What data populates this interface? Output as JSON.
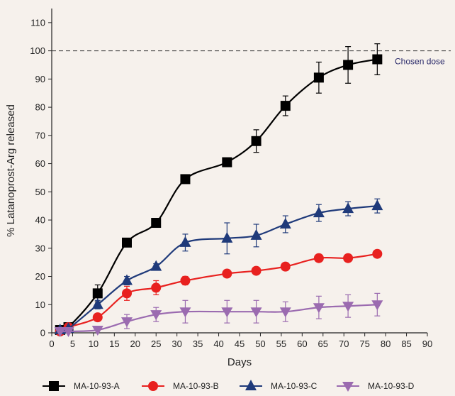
{
  "chart_data": {
    "type": "scatter",
    "title": "",
    "xlabel": "Days",
    "ylabel": "% Latanoprost-Arg released",
    "xlim": [
      0,
      90
    ],
    "ylim": [
      0,
      115
    ],
    "xticks": [
      "0",
      "5",
      "10",
      "15",
      "20",
      "25",
      "30",
      "35",
      "40",
      "45",
      "50",
      "55",
      "60",
      "65",
      "70",
      "75",
      "80",
      "85",
      "90"
    ],
    "yticks": [
      "0",
      "10",
      "20",
      "30",
      "40",
      "50",
      "60",
      "70",
      "80",
      "90",
      "100",
      "110"
    ],
    "grid": false,
    "legend_position": "bottom",
    "reference_line": {
      "y": 100,
      "style": "dashed",
      "label": "Chosen dose"
    },
    "series": [
      {
        "name": "MA-10-93-A",
        "color": "#000000",
        "marker": "square",
        "x": [
          2,
          4,
          11,
          18,
          25,
          32,
          42,
          49,
          56,
          64,
          71,
          78
        ],
        "y": [
          1,
          2,
          14,
          32,
          39,
          54.5,
          60.5,
          68,
          80.5,
          90.5,
          95,
          97
        ],
        "err": [
          0.5,
          0.5,
          3,
          1,
          1,
          1,
          1,
          4,
          3.5,
          5.5,
          6.5,
          5.5
        ]
      },
      {
        "name": "MA-10-93-B",
        "color": "#e8211f",
        "marker": "circle",
        "x": [
          2,
          4,
          11,
          18,
          25,
          32,
          42,
          49,
          56,
          64,
          71,
          78
        ],
        "y": [
          0.5,
          2,
          5.5,
          14,
          16,
          18.5,
          21,
          22,
          23.5,
          26.5,
          26.5,
          28
        ],
        "err": [
          0.5,
          0.5,
          1,
          2.5,
          2.5,
          1.5,
          1,
          1,
          1,
          1,
          1,
          1
        ]
      },
      {
        "name": "MA-10-93-C",
        "color": "#1f3a7a",
        "marker": "triangle-up",
        "x": [
          2,
          4,
          11,
          18,
          25,
          32,
          42,
          49,
          56,
          64,
          71,
          78
        ],
        "y": [
          1,
          1.5,
          10,
          18.5,
          23.5,
          32,
          33.5,
          34.5,
          38.5,
          42.5,
          44,
          45
        ],
        "err": [
          0.5,
          0.5,
          1.5,
          1.5,
          1,
          3,
          5.5,
          4,
          3,
          3,
          2.5,
          2.5
        ]
      },
      {
        "name": "MA-10-93-D",
        "color": "#9b6bb0",
        "marker": "triangle-down",
        "x": [
          2,
          4,
          11,
          18,
          25,
          32,
          42,
          49,
          56,
          64,
          71,
          78
        ],
        "y": [
          0.5,
          0.5,
          1,
          4,
          6.5,
          7.5,
          7.5,
          7.5,
          7.5,
          9,
          9.5,
          10
        ],
        "err": [
          0.5,
          0.5,
          0.5,
          2.5,
          2.5,
          4,
          4,
          4,
          3.5,
          4,
          4,
          4
        ]
      }
    ]
  }
}
